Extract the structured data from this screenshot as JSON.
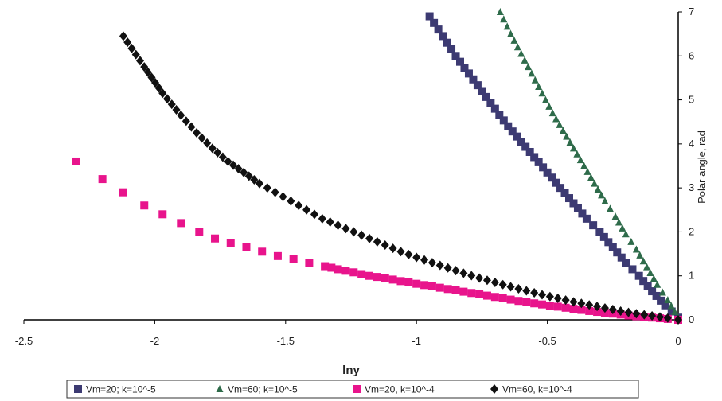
{
  "chart_data": {
    "type": "scatter",
    "title": "",
    "xlabel": "lny",
    "ylabel": "Polar angle, rad",
    "xlim": [
      -2.5,
      0
    ],
    "ylim": [
      0,
      7
    ],
    "x_ticks": [
      "-2.5",
      "-2",
      "-1.5",
      "-1",
      "-0.5",
      "0"
    ],
    "y_ticks": [
      "0",
      "1",
      "2",
      "3",
      "4",
      "5",
      "6",
      "7"
    ],
    "legend_position": "bottom",
    "series": [
      {
        "name": "Vm=20; k=10^-5",
        "marker": "square",
        "color": "#3c3a72",
        "x": [
          -0.95,
          -0.9,
          -0.85,
          -0.8,
          -0.75,
          -0.7,
          -0.65,
          -0.6,
          -0.55,
          -0.5,
          -0.45,
          -0.4,
          -0.35,
          -0.3,
          -0.25,
          -0.2,
          -0.15,
          -0.1,
          -0.05,
          0
        ],
        "y": [
          6.9,
          6.45,
          6.0,
          5.6,
          5.2,
          4.8,
          4.4,
          4.05,
          3.7,
          3.35,
          3.0,
          2.65,
          2.3,
          2.0,
          1.65,
          1.3,
          1.0,
          0.65,
          0.33,
          0.05
        ]
      },
      {
        "name": "Vm=60; k=10^-5",
        "marker": "triangle",
        "color": "#2e6b4a",
        "x": [
          -0.68,
          -0.64,
          -0.6,
          -0.56,
          -0.52,
          -0.48,
          -0.44,
          -0.4,
          -0.36,
          -0.32,
          -0.28,
          -0.24,
          -0.2,
          -0.16,
          -0.12,
          -0.08,
          -0.04,
          0
        ],
        "y": [
          7.0,
          6.5,
          6.05,
          5.6,
          5.15,
          4.7,
          4.3,
          3.9,
          3.5,
          3.1,
          2.7,
          2.35,
          1.95,
          1.6,
          1.2,
          0.8,
          0.45,
          0.05
        ]
      },
      {
        "name": "Vm=20, k=10^-4",
        "marker": "square",
        "color": "#e8148c",
        "x": [
          -2.3,
          -2.2,
          -2.12,
          -2.04,
          -1.97,
          -1.9,
          -1.83,
          -1.77,
          -1.71,
          -1.65,
          -1.59,
          -1.53,
          -1.47,
          -1.41,
          -1.35,
          -1.3,
          -1.24,
          -1.18,
          -1.12,
          -1.06,
          -1.0,
          -0.94,
          -0.88,
          -0.82,
          -0.76,
          -0.7,
          -0.64,
          -0.58,
          -0.52,
          -0.46,
          -0.4,
          -0.34,
          -0.28,
          -0.22,
          -0.16,
          -0.1,
          -0.04,
          0
        ],
        "y": [
          3.6,
          3.2,
          2.9,
          2.6,
          2.4,
          2.2,
          2.0,
          1.85,
          1.75,
          1.65,
          1.55,
          1.45,
          1.38,
          1.3,
          1.22,
          1.15,
          1.08,
          1.0,
          0.95,
          0.88,
          0.82,
          0.76,
          0.7,
          0.64,
          0.58,
          0.52,
          0.46,
          0.4,
          0.35,
          0.3,
          0.25,
          0.2,
          0.16,
          0.12,
          0.08,
          0.05,
          0.02,
          0.0
        ]
      },
      {
        "name": "Vm=60, k=10^-4",
        "marker": "diamond",
        "color": "#111111",
        "x": [
          -2.12,
          -2.04,
          -1.97,
          -1.9,
          -1.84,
          -1.78,
          -1.72,
          -1.66,
          -1.6,
          -1.54,
          -1.48,
          -1.42,
          -1.36,
          -1.3,
          -1.24,
          -1.18,
          -1.12,
          -1.06,
          -1.0,
          -0.94,
          -0.88,
          -0.82,
          -0.76,
          -0.7,
          -0.64,
          -0.58,
          -0.52,
          -0.46,
          -0.4,
          -0.34,
          -0.28,
          -0.22,
          -0.16,
          -0.1,
          -0.04,
          0
        ],
        "y": [
          6.45,
          5.75,
          5.15,
          4.65,
          4.25,
          3.9,
          3.6,
          3.35,
          3.1,
          2.9,
          2.7,
          2.5,
          2.3,
          2.15,
          2.0,
          1.85,
          1.7,
          1.55,
          1.42,
          1.3,
          1.18,
          1.06,
          0.95,
          0.85,
          0.75,
          0.66,
          0.57,
          0.49,
          0.41,
          0.34,
          0.27,
          0.2,
          0.14,
          0.09,
          0.04,
          0.0
        ]
      }
    ]
  }
}
